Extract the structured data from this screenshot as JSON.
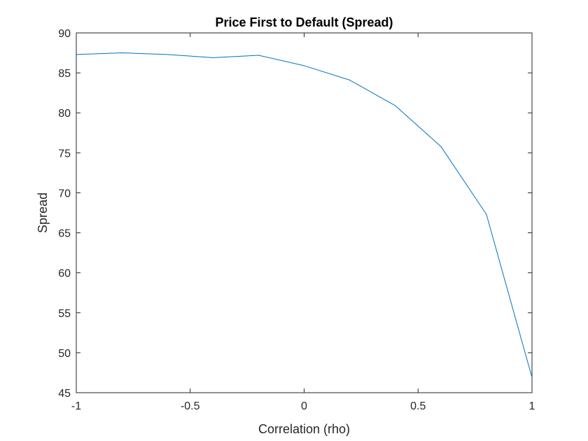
{
  "chart_data": {
    "type": "line",
    "title": "Price First to Default (Spread)",
    "xlabel": "Correlation (rho)",
    "ylabel": "Spread",
    "xlim": [
      -1,
      1
    ],
    "ylim": [
      45,
      90
    ],
    "xticks": [
      -1,
      -0.5,
      0,
      0.5,
      1
    ],
    "xtick_labels": [
      "-1",
      "-0.5",
      "0",
      "0.5",
      "1"
    ],
    "yticks": [
      45,
      50,
      55,
      60,
      65,
      70,
      75,
      80,
      85,
      90
    ],
    "ytick_labels": [
      "45",
      "50",
      "55",
      "60",
      "65",
      "70",
      "75",
      "80",
      "85",
      "90"
    ],
    "grid": false,
    "legend": "none",
    "series": [
      {
        "color": "#0072BD",
        "x": [
          -1,
          -0.8,
          -0.6,
          -0.4,
          -0.2,
          0,
          0.2,
          0.4,
          0.6,
          0.8,
          1
        ],
        "y": [
          87.3,
          87.5,
          87.3,
          86.9,
          87.2,
          85.9,
          84.1,
          80.9,
          75.8,
          67.3,
          46.9
        ]
      }
    ]
  }
}
